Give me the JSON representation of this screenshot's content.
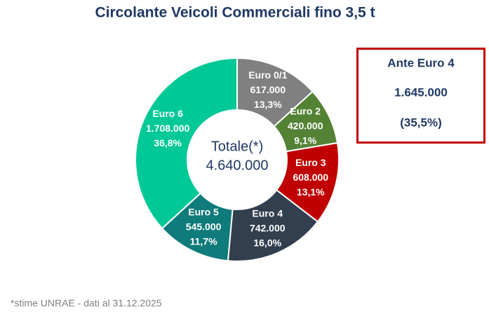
{
  "chart_data": {
    "type": "pie",
    "donut": true,
    "title": "Circolante Veicoli Commerciali fino 3,5 t",
    "categories": [
      "Euro 0/1",
      "Euro 2",
      "Euro 3",
      "Euro 4",
      "Euro 5",
      "Euro 6"
    ],
    "values": [
      617000,
      420000,
      608000,
      742000,
      545000,
      1708000
    ],
    "value_labels": [
      "617.000",
      "420.000",
      "608.000",
      "742.000",
      "545.000",
      "1.708.000"
    ],
    "shares": [
      13.3,
      9.1,
      13.1,
      16.0,
      11.7,
      36.8
    ],
    "share_labels": [
      "13,3%",
      "9,1%",
      "13,1%",
      "16,0%",
      "11,7%",
      "36,8%"
    ],
    "colors": [
      "#808080",
      "#548235",
      "#c00000",
      "#323f4f",
      "#0f7b7a",
      "#00c896"
    ],
    "center_label": "Totale(*)",
    "total": 4640000,
    "total_label": "4.640.000",
    "annotation": {
      "title": "Ante Euro 4",
      "value": 1645000,
      "value_label": "1.645.000",
      "share": 35.5,
      "share_label": "(35,5%)"
    },
    "note": "*stime UNRAE - dati al 31.12.2025"
  }
}
